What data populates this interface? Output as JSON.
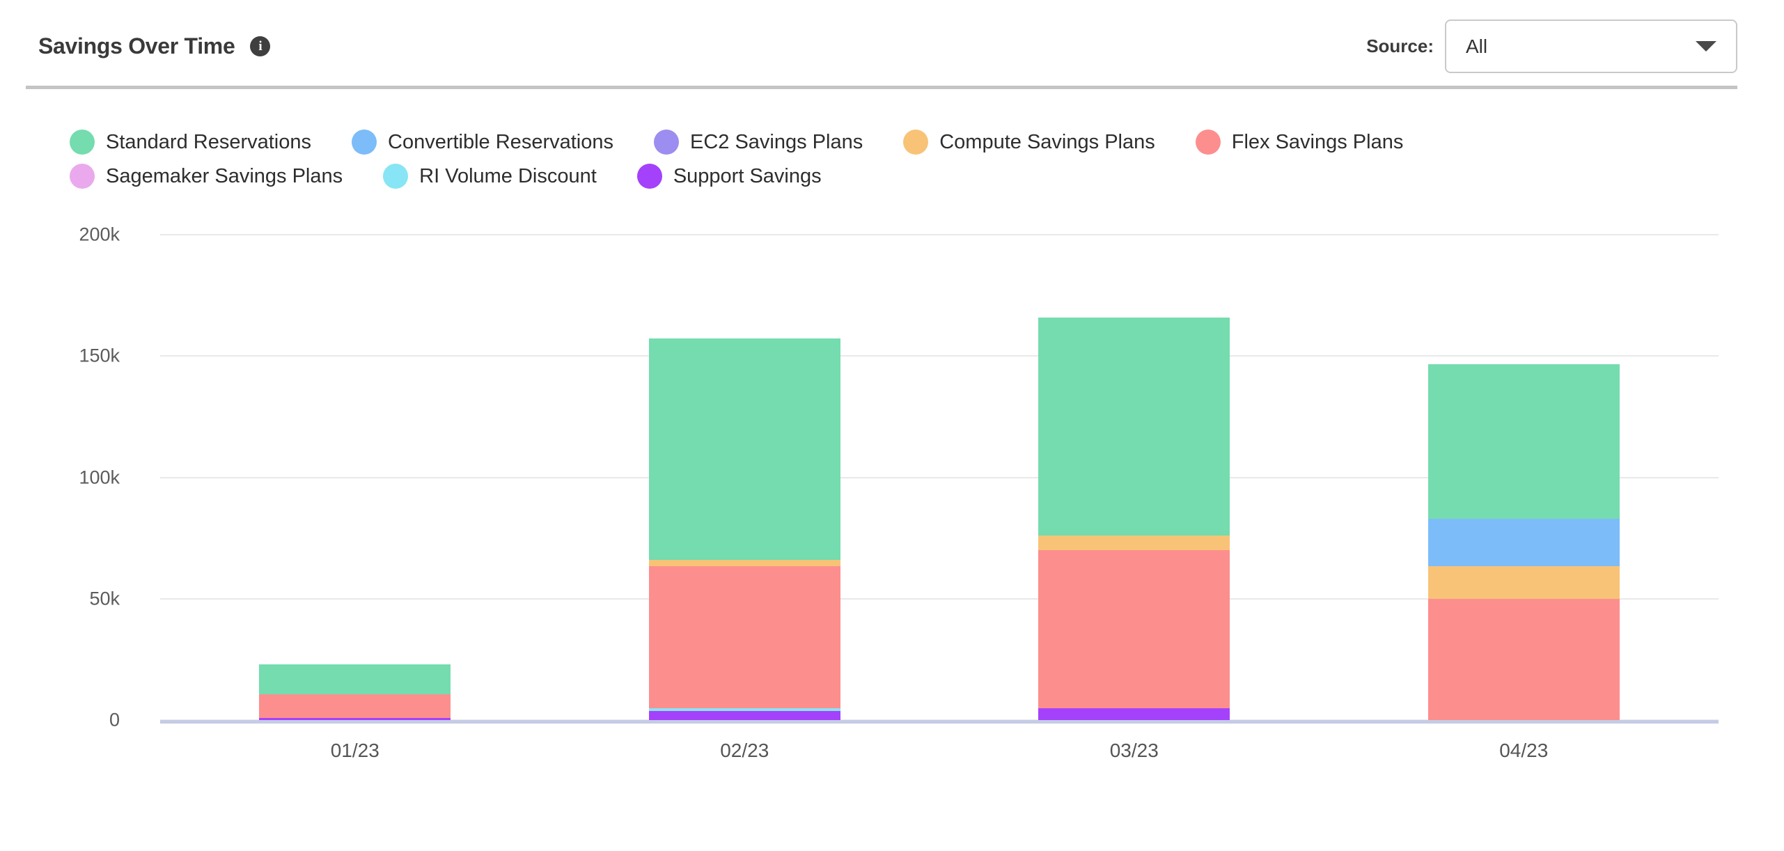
{
  "header": {
    "title": "Savings Over Time",
    "info_icon": "i",
    "source_label": "Source:",
    "source_value": "All"
  },
  "chart_data": {
    "type": "bar",
    "stacked": true,
    "title": "Savings Over Time",
    "xlabel": "",
    "ylabel": "",
    "unit": "thousand dollars (k)",
    "categories": [
      "01/23",
      "02/23",
      "03/23",
      "04/23"
    ],
    "series": [
      {
        "name": "Standard Reservations",
        "color": "#74dcae",
        "values": [
          12.4,
          91.4,
          90,
          63.5
        ]
      },
      {
        "name": "Convertible Reservations",
        "color": "#7cbcf9",
        "values": [
          0,
          0,
          0,
          19.5
        ]
      },
      {
        "name": "EC2 Savings Plans",
        "color": "#9c8df0",
        "values": [
          0,
          0,
          0,
          0
        ]
      },
      {
        "name": "Compute Savings Plans",
        "color": "#f8c377",
        "values": [
          0,
          2.5,
          6,
          13.5
        ]
      },
      {
        "name": "Flex Savings Plans",
        "color": "#fd8e8e",
        "values": [
          9.6,
          58.6,
          65,
          50
        ]
      },
      {
        "name": "Sagemaker Savings Plans",
        "color": "#eaa9ed",
        "values": [
          0,
          0,
          0,
          0
        ]
      },
      {
        "name": "RI Volume Discount",
        "color": "#87e5f5",
        "values": [
          0,
          1,
          0,
          0
        ]
      },
      {
        "name": "Support Savings",
        "color": "#a441fa",
        "values": [
          1,
          3.8,
          5,
          0
        ]
      }
    ],
    "stack_order_bottom_to_top": [
      "Support Savings",
      "RI Volume Discount",
      "Sagemaker Savings Plans",
      "Flex Savings Plans",
      "Compute Savings Plans",
      "EC2 Savings Plans",
      "Convertible Reservations",
      "Standard Reservations"
    ],
    "totals": [
      23,
      157.3,
      166,
      146.5
    ],
    "ylim": [
      0,
      200
    ],
    "yticks": [
      {
        "value": 200,
        "label": "200k"
      },
      {
        "value": 150,
        "label": "150k"
      },
      {
        "value": 100,
        "label": "100k"
      },
      {
        "value": 50,
        "label": "50k"
      },
      {
        "value": 0,
        "label": "0"
      }
    ],
    "grid": "horizontal",
    "legend_position": "top",
    "colors": {
      "axis_baseline": "#c5cce5",
      "gridline": "#e9e9e9",
      "tick_text": "#5c5c5c"
    }
  }
}
